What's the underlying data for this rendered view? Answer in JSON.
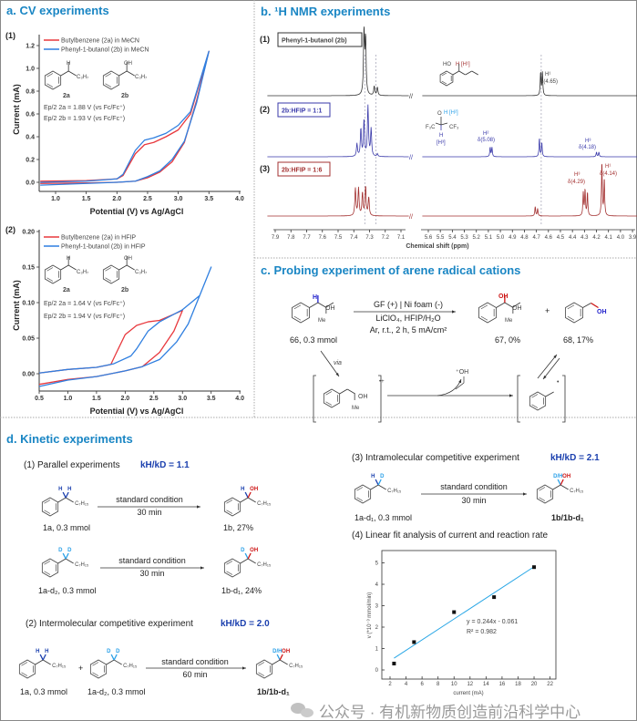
{
  "panel_a": {
    "title": "a. CV experiments",
    "plot1": {
      "label": "(1)",
      "legend": [
        "Butylbenzene (2a) in MeCN",
        "Phenyl-1-butanol (2b) in MeCN"
      ],
      "mol_a": "2a",
      "mol_b": "2b",
      "h": "H",
      "oh": "OH",
      "chain": "C₃H₇",
      "ep_a": "Ep/2 2a = 1.88 V (vs Fc/Fc⁺)",
      "ep_b": "Ep/2 2b = 1.93 V (vs Fc/Fc⁺)"
    },
    "plot2": {
      "label": "(2)",
      "legend": [
        "Butylbenzene (2a) in HFIP",
        "Phenyl-1-butanol (2b) in HFIP"
      ],
      "mol_a": "2a",
      "mol_b": "2b",
      "h": "H",
      "oh": "OH",
      "chain": "C₃H₇",
      "ep_a": "Ep/2 2a = 1.64 V (vs Fc/Fc⁺)",
      "ep_b": "Ep/2 2b = 1.94 V (vs Fc/Fc⁺)"
    }
  },
  "panel_b": {
    "title": "b. ¹H NMR experiments",
    "rows": [
      {
        "label": "(1)",
        "box": "Phenyl-1-butanol (2b)"
      },
      {
        "label": "(2)",
        "box": "2b:HFIP = 1:1"
      },
      {
        "label": "(3)",
        "box": "2b:HFIP = 1:6"
      }
    ],
    "annotations": {
      "s1_h1": "H¹",
      "s1_d1": "δ(4.65)",
      "s1_struct_ho": "HO",
      "s1_struct_h": "H [H¹]",
      "s2_h2": "H²",
      "s2_d2": "δ(5.08)",
      "s2_h3": "H³",
      "s2_d3": "δ(4.18)",
      "hfip_h_top": "H [H²]",
      "hfip_o": "O",
      "hfip_f3c": "F₃C",
      "hfip_cf3": "CF₃",
      "hfip_h": "H",
      "hfip_h3": "[H³]",
      "s3_h3": "H³",
      "s3_d3": "δ(4.29)",
      "s3_h1": "H¹",
      "s3_d1": "δ(4.14)"
    },
    "colors": {
      "s1": "#333333",
      "s2": "#3a3aaa",
      "s3": "#a33030"
    }
  },
  "panel_c": {
    "title": "c. Probing experiment of arene radical cations",
    "cond1": "GF (+) | Ni foam (-)",
    "cond2": "LiClO₄, HFIP/H₂O",
    "cond3": "Ar, r.t., 2 h, 5 mA/cm²",
    "sm_label": "66, 0.3 mmol",
    "p1_label": "67, 0%",
    "p2_label": "68, 17%",
    "plus": "+",
    "via": "via",
    "h": "H",
    "oh": "OH",
    "me": "Me",
    "radical_cation": "•+",
    "byproduct": "⁺OH",
    "radical": "•"
  },
  "panel_d": {
    "title": "d. Kinetic experiments",
    "exp1": {
      "label": "(1) Parallel experiments",
      "kie": "kH/kD = 1.1"
    },
    "exp2": {
      "label": "(2) Intermolecular competitive experiment",
      "kie": "kH/kD = 2.0"
    },
    "exp3": {
      "label": "(3) Intramolecular competitive experiment",
      "kie": "kH/kD = 2.1"
    },
    "exp4": {
      "label": "(4) Linear fit analysis of current and reaction rate"
    },
    "condition": "standard condition",
    "t30": "30 min",
    "t60": "60 min",
    "chain": "C₇H₁₅",
    "r1_sm": "1a, 0.3 mmol",
    "r1_p": "1b, 27%",
    "r2_sm": "1a-d₂, 0.3 mmol",
    "r2_p": "1b-d₁, 24%",
    "r3_sm1": "1a, 0.3 mmol",
    "r3_sm2": "1a-d₂, 0.3 mmol",
    "r3_p": "1b/1b-d₁",
    "r3_plus": "+",
    "r4_sm": "1a-d₁, 0.3 mmol",
    "r4_p": "1b/1b-d₁",
    "atoms": {
      "h": "H",
      "d": "D",
      "oh": "OH",
      "dh": "D/H"
    },
    "fit_eq": "y = 0.244x - 0.061",
    "fit_r2": "R² = 0.982"
  },
  "watermark": "公众号 · 有机新物质创造前沿科学中心",
  "chart_data": [
    {
      "type": "line",
      "title": "CV (1) in MeCN",
      "xlabel": "Potential (V) vs Ag/AgCl",
      "ylabel": "Current (mA)",
      "xlim": [
        0.75,
        4.0
      ],
      "ylim": [
        -0.08,
        1.3
      ],
      "xticks": [
        1.0,
        1.5,
        2.0,
        2.5,
        3.0,
        3.5,
        4.0
      ],
      "yticks": [
        0.0,
        0.2,
        0.4,
        0.6,
        0.8,
        1.0,
        1.2
      ],
      "series": [
        {
          "name": "Butylbenzene (2a) in MeCN",
          "color": "#e8383d",
          "points": [
            [
              0.75,
              0.01
            ],
            [
              1.5,
              0.015
            ],
            [
              2.0,
              0.03
            ],
            [
              2.1,
              0.06
            ],
            [
              2.3,
              0.25
            ],
            [
              2.45,
              0.33
            ],
            [
              2.6,
              0.35
            ],
            [
              2.8,
              0.4
            ],
            [
              3.0,
              0.46
            ],
            [
              3.2,
              0.6
            ],
            [
              3.5,
              1.15
            ],
            [
              3.3,
              0.72
            ],
            [
              3.1,
              0.35
            ],
            [
              2.9,
              0.18
            ],
            [
              2.7,
              0.09
            ],
            [
              2.5,
              0.04
            ],
            [
              2.3,
              0.01
            ],
            [
              2.0,
              0.0
            ],
            [
              1.5,
              -0.005
            ],
            [
              0.75,
              -0.01
            ]
          ]
        },
        {
          "name": "Phenyl-1-butanol (2b) in MeCN",
          "color": "#2f7fe0",
          "points": [
            [
              0.75,
              0.0
            ],
            [
              1.5,
              0.01
            ],
            [
              2.0,
              0.03
            ],
            [
              2.1,
              0.07
            ],
            [
              2.3,
              0.28
            ],
            [
              2.45,
              0.37
            ],
            [
              2.6,
              0.39
            ],
            [
              2.8,
              0.43
            ],
            [
              3.0,
              0.5
            ],
            [
              3.2,
              0.62
            ],
            [
              3.5,
              1.15
            ],
            [
              3.3,
              0.7
            ],
            [
              3.1,
              0.36
            ],
            [
              2.9,
              0.2
            ],
            [
              2.7,
              0.1
            ],
            [
              2.5,
              0.05
            ],
            [
              2.3,
              0.01
            ],
            [
              2.0,
              0.0
            ],
            [
              1.5,
              -0.01
            ],
            [
              0.75,
              -0.025
            ]
          ]
        }
      ]
    },
    {
      "type": "line",
      "title": "CV (2) in HFIP",
      "xlabel": "Potential (V) vs Ag/AgCl",
      "ylabel": "Current (mA)",
      "xlim": [
        0.5,
        4.0
      ],
      "ylim": [
        -0.024,
        0.2
      ],
      "xticks": [
        0.5,
        1.0,
        1.5,
        2.0,
        2.5,
        3.0,
        3.5,
        4.0
      ],
      "yticks": [
        0.0,
        0.05,
        0.1,
        0.15,
        0.2
      ],
      "series": [
        {
          "name": "Butylbenzene (2a) in HFIP",
          "color": "#e8383d",
          "points": [
            [
              0.5,
              0.001
            ],
            [
              1.0,
              0.006
            ],
            [
              1.5,
              0.009
            ],
            [
              1.75,
              0.013
            ],
            [
              1.85,
              0.03
            ],
            [
              2.0,
              0.055
            ],
            [
              2.2,
              0.068
            ],
            [
              2.4,
              0.073
            ],
            [
              2.6,
              0.075
            ],
            [
              2.8,
              0.082
            ],
            [
              3.0,
              0.089
            ],
            [
              2.85,
              0.06
            ],
            [
              2.6,
              0.03
            ],
            [
              2.3,
              0.01
            ],
            [
              2.0,
              0.004
            ],
            [
              1.5,
              -0.004
            ],
            [
              1.0,
              -0.008
            ],
            [
              0.5,
              -0.015
            ]
          ]
        },
        {
          "name": "Phenyl-1-butanol (2b) in HFIP",
          "color": "#2f7fe0",
          "points": [
            [
              0.5,
              0.001
            ],
            [
              1.0,
              0.006
            ],
            [
              1.5,
              0.009
            ],
            [
              1.8,
              0.014
            ],
            [
              2.1,
              0.025
            ],
            [
              2.2,
              0.035
            ],
            [
              2.4,
              0.06
            ],
            [
              2.6,
              0.073
            ],
            [
              3.0,
              0.09
            ],
            [
              3.3,
              0.11
            ],
            [
              3.5,
              0.15
            ],
            [
              3.3,
              0.11
            ],
            [
              3.1,
              0.07
            ],
            [
              2.9,
              0.045
            ],
            [
              2.6,
              0.02
            ],
            [
              2.3,
              0.01
            ],
            [
              2.0,
              0.004
            ],
            [
              1.5,
              -0.004
            ],
            [
              1.0,
              -0.009
            ],
            [
              0.5,
              -0.018
            ]
          ]
        }
      ]
    },
    {
      "type": "line",
      "title": "1H NMR spectra",
      "xlabel": "Chemical shift (ppm)",
      "xticks_left": [
        7.9,
        7.8,
        7.7,
        7.6,
        7.5,
        7.4,
        7.3,
        7.2,
        7.1
      ],
      "xticks_right": [
        5.6,
        5.5,
        5.4,
        5.3,
        5.2,
        5.1,
        5.0,
        4.9,
        4.8,
        4.7,
        4.6,
        4.5,
        4.4,
        4.3,
        4.2,
        4.1,
        4.0,
        3.9
      ],
      "series": [
        {
          "name": "Phenyl-1-butanol (2b)",
          "peaks_ppm_rel": [
            [
              7.335,
              70
            ],
            [
              7.325,
              60
            ],
            [
              7.27,
              10
            ],
            [
              7.25,
              9
            ],
            [
              4.665,
              25
            ],
            [
              4.65,
              25
            ]
          ]
        },
        {
          "name": "2b:HFIP = 1:1",
          "peaks_ppm_rel": [
            [
              7.38,
              14
            ],
            [
              7.355,
              30
            ],
            [
              7.335,
              40
            ],
            [
              7.31,
              55
            ],
            [
              7.29,
              30
            ],
            [
              7.25,
              3
            ],
            [
              5.085,
              10
            ],
            [
              5.07,
              10
            ],
            [
              4.675,
              20
            ],
            [
              4.655,
              15
            ],
            [
              4.2,
              5
            ],
            [
              4.18,
              5
            ]
          ]
        },
        {
          "name": "2b:HFIP = 1:6",
          "peaks_ppm_rel": [
            [
              7.39,
              30
            ],
            [
              7.37,
              30
            ],
            [
              7.345,
              25
            ],
            [
              7.325,
              32
            ],
            [
              7.305,
              20
            ],
            [
              4.71,
              10
            ],
            [
              4.69,
              8
            ],
            [
              4.31,
              25
            ],
            [
              4.295,
              28
            ],
            [
              4.275,
              25
            ],
            [
              4.155,
              58
            ],
            [
              4.135,
              40
            ]
          ]
        }
      ]
    },
    {
      "type": "scatter",
      "title": "Linear fit analysis of current and reaction rate",
      "xlabel": "current (mA)",
      "ylabel": "v (*10⁻³ mmol/min)",
      "xlim": [
        1,
        23
      ],
      "ylim": [
        -0.45,
        5.5
      ],
      "xticks": [
        2,
        4,
        6,
        8,
        10,
        12,
        14,
        16,
        18,
        20,
        22
      ],
      "yticks": [
        0,
        1,
        2,
        3,
        4,
        5
      ],
      "x": [
        2.5,
        5,
        10,
        15,
        20
      ],
      "y": [
        0.3,
        1.3,
        2.7,
        3.4,
        4.8
      ],
      "fit": {
        "slope": 0.244,
        "intercept": -0.061,
        "r2": 0.982,
        "x_range": [
          2.5,
          20
        ],
        "color": "#2aa7e6"
      }
    }
  ]
}
